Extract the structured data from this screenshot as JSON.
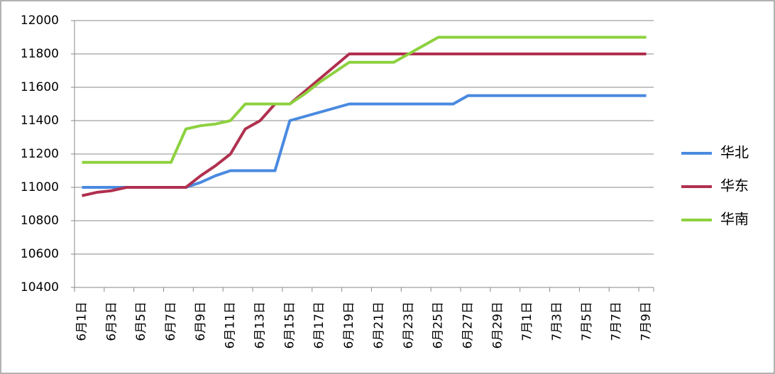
{
  "chart_data": {
    "type": "line",
    "categories": [
      "6月1日",
      null,
      "6月3日",
      null,
      "6月5日",
      null,
      "6月7日",
      null,
      "6月9日",
      null,
      "6月11日",
      null,
      "6月13日",
      null,
      "6月15日",
      null,
      "6月17日",
      null,
      "6月19日",
      null,
      "6月21日",
      null,
      "6月23日",
      null,
      "6月25日",
      null,
      "6月27日",
      null,
      "6月29日",
      null,
      "7月1日",
      null,
      "7月3日",
      null,
      "7月5日",
      null,
      "7月7日",
      null,
      "7月9日"
    ],
    "series": [
      {
        "name": "华北",
        "color": "#4a8ae0",
        "values": [
          11000,
          11000,
          11000,
          11000,
          11000,
          11000,
          11000,
          11000,
          11030,
          11070,
          11100,
          11100,
          11100,
          11100,
          11400,
          11425,
          11450,
          11475,
          11500,
          11500,
          11500,
          11500,
          11500,
          11500,
          11500,
          11500,
          11550,
          11550,
          11550,
          11550,
          11550,
          11550,
          11550,
          11550,
          11550,
          11550,
          11550,
          11550,
          11550
        ]
      },
      {
        "name": "华东",
        "color": "#b0304f",
        "values": [
          10950,
          10970,
          10980,
          11000,
          11000,
          11000,
          11000,
          11000,
          11070,
          11130,
          11200,
          11350,
          11400,
          11500,
          11500,
          11575,
          11650,
          11725,
          11800,
          11800,
          11800,
          11800,
          11800,
          11800,
          11800,
          11800,
          11800,
          11800,
          11800,
          11800,
          11800,
          11800,
          11800,
          11800,
          11800,
          11800,
          11800,
          11800,
          11800
        ]
      },
      {
        "name": "华南",
        "color": "#8dd13f",
        "values": [
          11150,
          11150,
          11150,
          11150,
          11150,
          11150,
          11150,
          11350,
          11370,
          11380,
          11400,
          11500,
          11500,
          11500,
          11500,
          11560,
          11630,
          11690,
          11750,
          11750,
          11750,
          11750,
          11800,
          11850,
          11900,
          11900,
          11900,
          11900,
          11900,
          11900,
          11900,
          11900,
          11900,
          11900,
          11900,
          11900,
          11900,
          11900,
          11900
        ]
      }
    ],
    "ylim": [
      10400,
      12000
    ],
    "yticks": [
      10400,
      10600,
      10800,
      11000,
      11200,
      11400,
      11600,
      11800,
      12000
    ],
    "grid": true,
    "legend": "right"
  }
}
